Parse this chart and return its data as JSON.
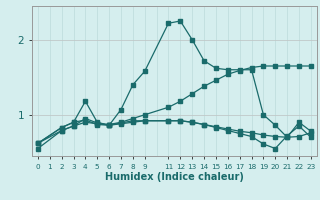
{
  "title": "",
  "xlabel": "Humidex (Indice chaleur)",
  "bg_color": "#d5eeee",
  "line_color": "#1a6b6b",
  "grid_color_v": "#c0dede",
  "grid_color_h": "#c0c8c8",
  "x_ticks": [
    0,
    1,
    2,
    3,
    4,
    5,
    6,
    7,
    8,
    9,
    11,
    12,
    13,
    14,
    15,
    16,
    17,
    18,
    19,
    20,
    21,
    22,
    23
  ],
  "yticks": [
    1,
    2
  ],
  "ylim": [
    0.45,
    2.45
  ],
  "xlim": [
    -0.5,
    23.5
  ],
  "x_positions": [
    0,
    2,
    3,
    4,
    5,
    6,
    7,
    8,
    9,
    11,
    12,
    13,
    14,
    15,
    16,
    17,
    18,
    19,
    20,
    21,
    22,
    23
  ],
  "s1": [
    0.62,
    0.83,
    0.9,
    1.18,
    0.9,
    0.86,
    1.07,
    1.4,
    1.58,
    2.22,
    2.25,
    2.0,
    1.72,
    1.62,
    1.6,
    1.6,
    1.6,
    1.0,
    0.86,
    0.7,
    0.9,
    0.78
  ],
  "s2": [
    0.62,
    0.83,
    0.9,
    0.93,
    0.87,
    0.86,
    0.88,
    0.9,
    0.92,
    0.92,
    0.92,
    0.9,
    0.87,
    0.84,
    0.81,
    0.78,
    0.76,
    0.73,
    0.71,
    0.7,
    0.71,
    0.76
  ],
  "s3": [
    0.62,
    0.79,
    0.85,
    0.9,
    0.88,
    0.87,
    0.9,
    0.95,
    1.0,
    1.1,
    1.18,
    1.28,
    1.38,
    1.46,
    1.54,
    1.59,
    1.63,
    1.65,
    1.65,
    1.65,
    1.65,
    1.65
  ],
  "s4": [
    0.55,
    0.79,
    0.85,
    0.95,
    0.89,
    0.86,
    0.89,
    0.92,
    0.92,
    0.92,
    0.92,
    0.9,
    0.87,
    0.83,
    0.79,
    0.75,
    0.71,
    0.61,
    0.55,
    0.72,
    0.85,
    0.7
  ]
}
